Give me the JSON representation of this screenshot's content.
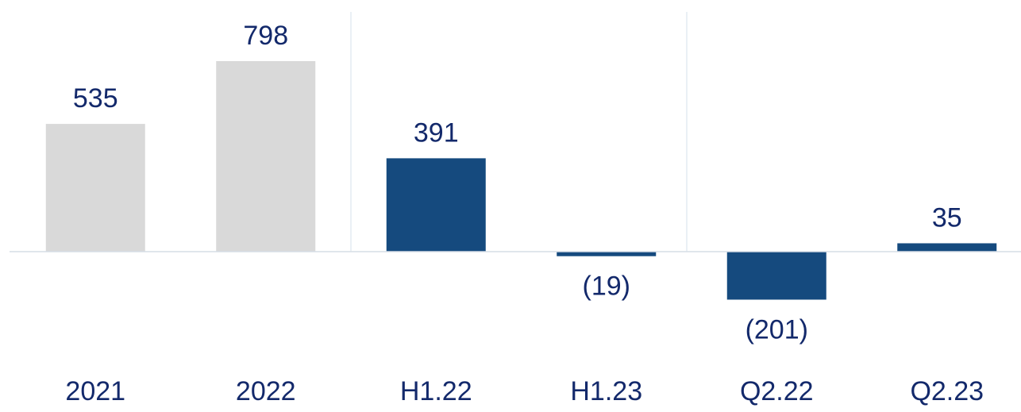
{
  "chart_data": {
    "type": "bar",
    "categories": [
      "2021",
      "2022",
      "H1.22",
      "H1.23",
      "Q2.22",
      "Q2.23"
    ],
    "values": [
      535,
      798,
      391,
      -19,
      -201,
      35
    ],
    "value_labels": [
      "535",
      "798",
      "391",
      "(19)",
      "(201)",
      "35"
    ],
    "colors": [
      "#d9d9d9",
      "#d9d9d9",
      "#154a7e",
      "#154a7e",
      "#154a7e",
      "#154a7e"
    ]
  }
}
